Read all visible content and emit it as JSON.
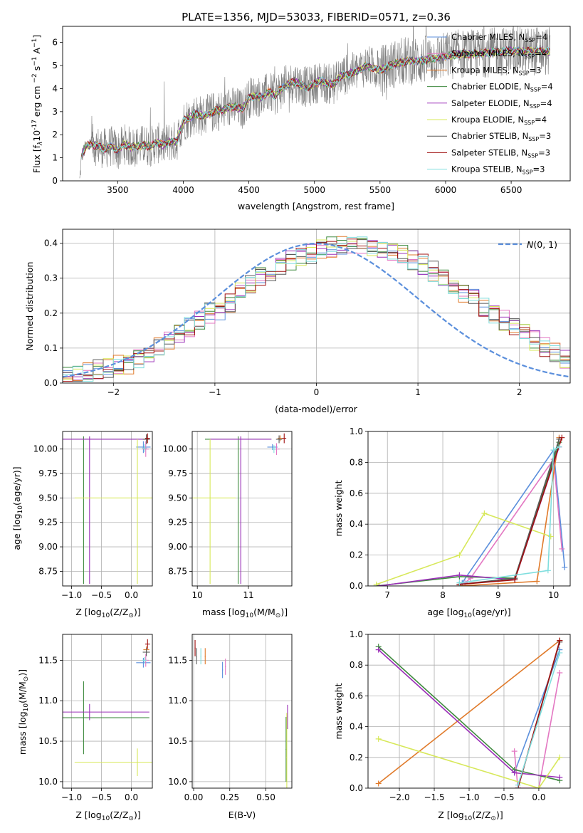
{
  "colors": {
    "Chabrier MILES": "#5b8fdc",
    "Salpeter MILES": "#e377c2",
    "Kroupa MILES": "#e07a2a",
    "Chabrier ELODIE": "#3f8a3f",
    "Salpeter ELODIE": "#9b30b8",
    "Kroupa ELODIE": "#d7e85a",
    "Chabrier STELIB": "#595959",
    "Salpeter STELIB": "#a01010",
    "Kroupa STELIB": "#80dede",
    "data": "#808080",
    "grid": "#b0b0b0"
  },
  "chart_data": [
    {
      "id": "spectrum",
      "type": "line",
      "title": "PLATE=1356, MJD=53033, FIBERID=0571, z=0.36",
      "xlabel": "wavelength [Angstrom, rest frame]",
      "ylabel": "Flux [f",
      "ylabel_rest": "10",
      "ylabel_exp": "-17",
      "ylabel_units": "erg cm",
      "ylabel_units2": "s",
      "ylabel_units3": "A",
      "xlim": [
        3080,
        6950
      ],
      "ylim": [
        0,
        6.7
      ],
      "xticks": [
        "3500",
        "4000",
        "4500",
        "5000",
        "5500",
        "6000",
        "6500"
      ],
      "xtick_values": [
        3500,
        4000,
        4500,
        5000,
        5500,
        6000,
        6500
      ],
      "yticks": [
        "0",
        "1",
        "2",
        "3",
        "4",
        "5",
        "6"
      ],
      "ytick_values": [
        0,
        1,
        2,
        3,
        4,
        5,
        6
      ],
      "grid": false,
      "legend_position": "right",
      "legend": [
        {
          "name": "Chabrier MILES, N",
          "sub": "SSP",
          "tail": "=4"
        },
        {
          "name": "Salpeter MILES, N",
          "sub": "SSP",
          "tail": "=4"
        },
        {
          "name": "Kroupa MILES, N",
          "sub": "SSP",
          "tail": "=3"
        },
        {
          "name": "Chabrier ELODIE, N",
          "sub": "SSP",
          "tail": "=4"
        },
        {
          "name": "Salpeter ELODIE, N",
          "sub": "SSP",
          "tail": "=4"
        },
        {
          "name": "Kroupa ELODIE, N",
          "sub": "SSP",
          "tail": "=4"
        },
        {
          "name": "Chabrier STELIB, N",
          "sub": "SSP",
          "tail": "=3"
        },
        {
          "name": "Salpeter STELIB, N",
          "sub": "SSP",
          "tail": "=3"
        },
        {
          "name": "Kroupa STELIB, N",
          "sub": "SSP",
          "tail": "=3"
        }
      ],
      "continuum": {
        "x": [
          3210,
          3225,
          3260,
          3300,
          3350,
          3400,
          3450,
          3500,
          3550,
          3600,
          3650,
          3700,
          3750,
          3800,
          3850,
          3900,
          3950,
          4000,
          4050,
          4100,
          4150,
          4200,
          4250,
          4300,
          4350,
          4400,
          4450,
          4500,
          4550,
          4600,
          4650,
          4700,
          4750,
          4800,
          4850,
          4900,
          4950,
          5000,
          5050,
          5100,
          5150,
          5200,
          5300,
          5400,
          5500,
          5600,
          5700,
          5800,
          5900,
          6000,
          6100,
          6200,
          6300,
          6400,
          6500,
          6600,
          6700,
          6800
        ],
        "y": [
          0.0,
          1.1,
          1.5,
          1.6,
          1.5,
          1.4,
          1.5,
          1.3,
          1.6,
          1.45,
          1.5,
          1.55,
          1.5,
          1.65,
          1.55,
          1.7,
          1.7,
          2.6,
          2.75,
          2.9,
          2.8,
          2.9,
          3.05,
          3.05,
          3.2,
          3.2,
          3.1,
          3.6,
          3.7,
          3.6,
          3.85,
          3.7,
          4.0,
          4.2,
          4.3,
          4.15,
          4.05,
          4.2,
          4.35,
          4.2,
          4.2,
          4.55,
          4.7,
          5.0,
          4.8,
          5.05,
          5.2,
          5.2,
          5.3,
          5.4,
          5.5,
          5.5,
          5.55,
          5.6,
          5.65,
          5.6,
          5.65,
          5.6
        ],
        "noise_amplitude": 0.9
      }
    },
    {
      "id": "residuals",
      "type": "area",
      "xlabel": "(data-model)/error",
      "ylabel": "Normed distribution",
      "xlim": [
        -2.5,
        2.5
      ],
      "ylim": [
        0,
        0.44
      ],
      "xticks": [
        "−2",
        "−1",
        "0",
        "1",
        "2"
      ],
      "xtick_values": [
        -2,
        -1,
        0,
        1,
        2
      ],
      "yticks": [
        "0.0",
        "0.1",
        "0.2",
        "0.3",
        "0.4"
      ],
      "ytick_values": [
        0,
        0.1,
        0.2,
        0.3,
        0.4
      ],
      "grid": true,
      "legend_position": "top-right",
      "legend_label": "(0, 1)",
      "legend_symbol": "N",
      "gaussian": {
        "mean": 0,
        "sigma": 1
      },
      "bin_width": 0.1,
      "histogram_profile": [
        0.02,
        0.025,
        0.03,
        0.04,
        0.045,
        0.05,
        0.055,
        0.07,
        0.08,
        0.1,
        0.12,
        0.14,
        0.16,
        0.18,
        0.2,
        0.21,
        0.23,
        0.26,
        0.28,
        0.3,
        0.32,
        0.33,
        0.35,
        0.36,
        0.37,
        0.38,
        0.39,
        0.39,
        0.395,
        0.39,
        0.39,
        0.385,
        0.38,
        0.37,
        0.35,
        0.34,
        0.32,
        0.3,
        0.28,
        0.26,
        0.24,
        0.22,
        0.2,
        0.18,
        0.16,
        0.14,
        0.12,
        0.1,
        0.09,
        0.07
      ]
    },
    {
      "id": "age_vs_Z",
      "type": "scatter",
      "xlabel": "Z [log",
      "xlabel_sub": "10",
      "xlabel_tail": "(Z/Z",
      "ylabel": "age  [log",
      "ylabel_sub": "10",
      "ylabel_tail": "(age/yr)]",
      "xlim": [
        -1.15,
        0.35
      ],
      "ylim": [
        8.6,
        10.18
      ],
      "xticks": [
        "−1.0",
        "−0.5",
        "0.0"
      ],
      "xtick_values": [
        -1.0,
        -0.5,
        0.0
      ],
      "yticks": [
        "8.75",
        "9.00",
        "9.25",
        "9.50",
        "9.75",
        "10.00"
      ],
      "ytick_values": [
        8.75,
        9.0,
        9.25,
        9.5,
        9.75,
        10.0
      ],
      "grid": true,
      "points": [
        {
          "model": "Chabrier MILES",
          "x": 0.2,
          "y": 10.02,
          "xerr": 0.12,
          "yerr": 0.06
        },
        {
          "model": "Salpeter MILES",
          "x": 0.24,
          "y": 10.0,
          "xerr": 0.05,
          "yerr": 0.08
        },
        {
          "model": "Kroupa MILES",
          "x": 0.25,
          "y": 10.1,
          "xerr": 0.04,
          "yerr": 0.04
        },
        {
          "model": "Chabrier ELODIE",
          "x": -0.8,
          "y": 10.1,
          "xerr": 1.1,
          "yerr": 0.03,
          "yerr_low": 1.48
        },
        {
          "model": "Salpeter ELODIE",
          "x": -0.7,
          "y": 10.1,
          "xerr": 1.0,
          "yerr": 0.03,
          "yerr_low": 1.48
        },
        {
          "model": "Kroupa ELODIE",
          "x": 0.1,
          "y": 9.5,
          "xerr": 1.05,
          "yerr": 0.6,
          "yerr_low": 0.88
        },
        {
          "model": "Chabrier STELIB",
          "x": 0.25,
          "y": 10.1,
          "xerr": 0.06,
          "yerr": 0.05
        },
        {
          "model": "Salpeter STELIB",
          "x": 0.27,
          "y": 10.11,
          "xerr": 0.04,
          "yerr": 0.05
        },
        {
          "model": "Kroupa STELIB",
          "x": 0.22,
          "y": 10.01,
          "xerr": 0.04,
          "yerr": 0.04
        }
      ]
    },
    {
      "id": "age_vs_mass",
      "type": "scatter",
      "xlabel": "mass [log",
      "xlabel_sub": "10",
      "xlabel_tail": "(M/M",
      "xlim": [
        9.9,
        11.85
      ],
      "ylim": [
        8.6,
        10.18
      ],
      "xticks": [
        "10",
        "11"
      ],
      "xtick_values": [
        10,
        11
      ],
      "yticks": [
        "8.75",
        "9.00",
        "9.25",
        "9.50",
        "9.75",
        "10.00"
      ],
      "ytick_values": [
        8.75,
        9.0,
        9.25,
        9.5,
        9.75,
        10.0
      ],
      "grid": true,
      "points": [
        {
          "model": "Chabrier MILES",
          "x": 11.47,
          "y": 10.02,
          "xerr": 0.1,
          "yerr": 0.03
        },
        {
          "model": "Salpeter MILES",
          "x": 11.55,
          "y": 10.0,
          "xerr": 0.06,
          "yerr": 0.06
        },
        {
          "model": "Kroupa MILES",
          "x": 11.62,
          "y": 10.11,
          "xerr": 0.05,
          "yerr": 0.03
        },
        {
          "model": "Chabrier ELODIE",
          "x": 10.8,
          "y": 10.1,
          "xerr": 0.65,
          "yerr": 0.03,
          "yerr_low": 1.48
        },
        {
          "model": "Salpeter ELODIE",
          "x": 10.85,
          "y": 10.1,
          "xerr": 0.6,
          "yerr": 0.03,
          "yerr_low": 1.48
        },
        {
          "model": "Kroupa ELODIE",
          "x": 10.25,
          "y": 9.5,
          "xerr": 0.5,
          "yerr": 0.6,
          "yerr_low": 0.88
        },
        {
          "model": "Chabrier STELIB",
          "x": 11.6,
          "y": 10.1,
          "xerr": 0.06,
          "yerr": 0.04
        },
        {
          "model": "Salpeter STELIB",
          "x": 11.7,
          "y": 10.11,
          "xerr": 0.04,
          "yerr": 0.05
        },
        {
          "model": "Kroupa STELIB",
          "x": 11.5,
          "y": 10.0,
          "xerr": 0.04,
          "yerr": 0.04
        }
      ]
    },
    {
      "id": "weight_vs_age",
      "type": "line",
      "xlabel": "age  [log",
      "xlabel_sub": "10",
      "xlabel_tail": "(age/yr)]",
      "ylabel": "mass weight",
      "xlim": [
        6.65,
        10.3
      ],
      "ylim": [
        0,
        1.0
      ],
      "xticks": [
        "7",
        "8",
        "9",
        "10"
      ],
      "xtick_values": [
        7,
        8,
        9,
        10
      ],
      "yticks": [
        "0.0",
        "0.2",
        "0.4",
        "0.6",
        "0.8",
        "1.0"
      ],
      "ytick_values": [
        0,
        0.2,
        0.4,
        0.6,
        0.8,
        1.0
      ],
      "grid": true,
      "series": [
        {
          "model": "Chabrier MILES",
          "x": [
            8.3,
            8.35,
            10.0,
            10.2
          ],
          "y": [
            0.0,
            0.02,
            0.88,
            0.12
          ]
        },
        {
          "model": "Salpeter MILES",
          "x": [
            8.4,
            8.5,
            10.0,
            10.15
          ],
          "y": [
            0.02,
            0.05,
            0.82,
            0.24
          ]
        },
        {
          "model": "Kroupa MILES",
          "x": [
            8.3,
            9.7,
            10.1
          ],
          "y": [
            0.0,
            0.03,
            0.96
          ]
        },
        {
          "model": "Chabrier ELODIE",
          "x": [
            6.8,
            8.3,
            9.3,
            10.1
          ],
          "y": [
            0.0,
            0.06,
            0.05,
            0.93
          ]
        },
        {
          "model": "Salpeter ELODIE",
          "x": [
            6.85,
            8.3,
            9.3,
            10.1
          ],
          "y": [
            0.0,
            0.07,
            0.04,
            0.9
          ]
        },
        {
          "model": "Kroupa ELODIE",
          "x": [
            6.8,
            8.3,
            8.75,
            9.95
          ],
          "y": [
            0.01,
            0.2,
            0.47,
            0.32
          ]
        },
        {
          "model": "Chabrier STELIB",
          "x": [
            8.3,
            9.3,
            10.1
          ],
          "y": [
            0.01,
            0.05,
            0.95
          ]
        },
        {
          "model": "Salpeter STELIB",
          "x": [
            8.3,
            9.3,
            10.15
          ],
          "y": [
            0.01,
            0.04,
            0.96
          ]
        },
        {
          "model": "Kroupa STELIB",
          "x": [
            8.3,
            9.9,
            10.0,
            10.1
          ],
          "y": [
            0.02,
            0.1,
            0.88,
            0.9
          ]
        }
      ]
    },
    {
      "id": "mass_vs_Z",
      "type": "scatter",
      "xlabel": "Z [log",
      "xlabel_sub": "10",
      "xlabel_tail": "(Z/Z",
      "ylabel": "mass [log",
      "ylabel_sub": "10",
      "ylabel_tail": "(M/M",
      "xlim": [
        -1.15,
        0.35
      ],
      "ylim": [
        9.92,
        11.82
      ],
      "xticks": [
        "−1.0",
        "−0.5",
        "0.0"
      ],
      "xtick_values": [
        -1.0,
        -0.5,
        0.0
      ],
      "yticks": [
        "10.0",
        "10.5",
        "11.0",
        "11.5"
      ],
      "ytick_values": [
        10.0,
        10.5,
        11.0,
        11.5
      ],
      "grid": true,
      "points": [
        {
          "model": "Chabrier MILES",
          "x": 0.2,
          "y": 11.47,
          "xerr": 0.12,
          "yerr": 0.06
        },
        {
          "model": "Salpeter MILES",
          "x": 0.24,
          "y": 11.5,
          "xerr": 0.05,
          "yerr": 0.08
        },
        {
          "model": "Kroupa MILES",
          "x": 0.25,
          "y": 11.63,
          "xerr": 0.05,
          "yerr": 0.04
        },
        {
          "model": "Chabrier ELODIE",
          "x": -0.8,
          "y": 10.79,
          "xerr": 1.1,
          "yerr": 0.45
        },
        {
          "model": "Salpeter ELODIE",
          "x": -0.7,
          "y": 10.86,
          "xerr": 1.0,
          "yerr": 0.1
        },
        {
          "model": "Kroupa ELODIE",
          "x": 0.1,
          "y": 10.24,
          "xerr": 1.05,
          "yerr": 0.17
        },
        {
          "model": "Chabrier STELIB",
          "x": 0.25,
          "y": 11.6,
          "xerr": 0.06,
          "yerr": 0.05
        },
        {
          "model": "Salpeter STELIB",
          "x": 0.27,
          "y": 11.7,
          "xerr": 0.04,
          "yerr": 0.06
        },
        {
          "model": "Kroupa STELIB",
          "x": 0.22,
          "y": 11.5,
          "xerr": 0.04,
          "yerr": 0.04
        }
      ]
    },
    {
      "id": "mass_vs_ebv",
      "type": "scatter",
      "xlabel": "E(B-V)",
      "xlim": [
        -0.01,
        0.68
      ],
      "ylim": [
        9.92,
        11.82
      ],
      "xticks": [
        "0.00",
        "0.25",
        "0.50"
      ],
      "xtick_values": [
        0.0,
        0.25,
        0.5
      ],
      "yticks": [
        "10.0",
        "10.5",
        "11.0",
        "11.5"
      ],
      "ytick_values": [
        10.0,
        10.5,
        11.0,
        11.5
      ],
      "grid": true,
      "points": [
        {
          "model": "Chabrier MILES",
          "x": 0.2,
          "y": 11.38,
          "xerr": 0.003,
          "yerr": 0.1
        },
        {
          "model": "Salpeter MILES",
          "x": 0.22,
          "y": 11.42,
          "xerr": 0.003,
          "yerr": 0.1
        },
        {
          "model": "Kroupa MILES",
          "x": 0.08,
          "y": 11.55,
          "xerr": 0.003,
          "yerr": 0.1
        },
        {
          "model": "Chabrier ELODIE",
          "x": 0.64,
          "y": 10.4,
          "xerr": 0.003,
          "yerr": 0.4
        },
        {
          "model": "Salpeter ELODIE",
          "x": 0.65,
          "y": 10.8,
          "xerr": 0.003,
          "yerr": 0.15
        },
        {
          "model": "Kroupa ELODIE",
          "x": 0.645,
          "y": 10.3,
          "xerr": 0.003,
          "yerr": 0.55
        },
        {
          "model": "Chabrier STELIB",
          "x": 0.02,
          "y": 11.55,
          "xerr": 0.003,
          "yerr": 0.1
        },
        {
          "model": "Salpeter STELIB",
          "x": 0.01,
          "y": 11.65,
          "xerr": 0.003,
          "yerr": 0.1
        },
        {
          "model": "Kroupa STELIB",
          "x": 0.05,
          "y": 11.55,
          "xerr": 0.003,
          "yerr": 0.1
        }
      ]
    },
    {
      "id": "weight_vs_Z",
      "type": "line",
      "xlabel": "Z [log",
      "xlabel_sub": "10",
      "xlabel_tail": "(Z/Z",
      "ylabel": "mass weight",
      "xlim": [
        -2.45,
        0.45
      ],
      "ylim": [
        0,
        1.0
      ],
      "xticks": [
        "−2.0",
        "−1.5",
        "−1.0",
        "−0.5",
        "0.0"
      ],
      "xtick_values": [
        -2.0,
        -1.5,
        -1.0,
        -0.5,
        0.0
      ],
      "yticks": [
        "0.0",
        "0.2",
        "0.4",
        "0.6",
        "0.8",
        "1.0"
      ],
      "ytick_values": [
        0,
        0.2,
        0.4,
        0.6,
        0.8,
        1.0
      ],
      "grid": true,
      "series": [
        {
          "model": "Chabrier MILES",
          "x": [
            -0.35,
            0.3
          ],
          "y": [
            0.1,
            0.9
          ]
        },
        {
          "model": "Salpeter MILES",
          "x": [
            -0.35,
            -0.3,
            0.0,
            0.3
          ],
          "y": [
            0.24,
            0.0,
            0.0,
            0.75
          ]
        },
        {
          "model": "Kroupa MILES",
          "x": [
            -2.3,
            0.3
          ],
          "y": [
            0.03,
            0.96
          ]
        },
        {
          "model": "Chabrier ELODIE",
          "x": [
            -2.3,
            -0.35,
            0.3
          ],
          "y": [
            0.92,
            0.12,
            0.05
          ]
        },
        {
          "model": "Salpeter ELODIE",
          "x": [
            -2.3,
            -0.35,
            0.3
          ],
          "y": [
            0.9,
            0.1,
            0.07
          ]
        },
        {
          "model": "Kroupa ELODIE",
          "x": [
            -2.3,
            0.0,
            0.3
          ],
          "y": [
            0.32,
            0.0,
            0.2
          ]
        },
        {
          "model": "Chabrier STELIB",
          "x": [
            -0.3,
            0.3
          ],
          "y": [
            0.0,
            0.95
          ]
        },
        {
          "model": "Salpeter STELIB",
          "x": [
            -0.3,
            0.3
          ],
          "y": [
            0.0,
            0.96
          ]
        },
        {
          "model": "Kroupa STELIB",
          "x": [
            -0.3,
            0.3
          ],
          "y": [
            0.02,
            0.88
          ]
        }
      ]
    }
  ]
}
